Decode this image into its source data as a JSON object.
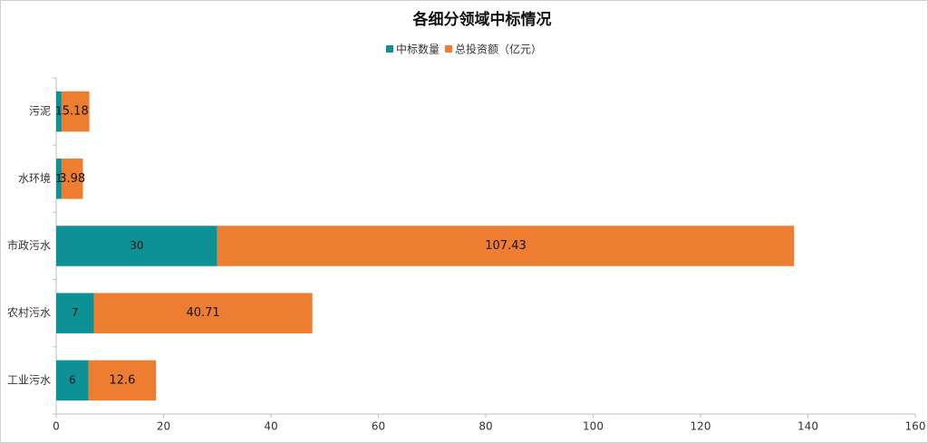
{
  "chart_data": {
    "type": "stacked-hbar",
    "title": "各细分领域中标情况",
    "categories": [
      "污泥",
      "水环境",
      "市政污水",
      "农村污水",
      "工业污水"
    ],
    "series": [
      {
        "name": "中标数量",
        "color": "#0e9196",
        "values": [
          1,
          1,
          30,
          7,
          6
        ]
      },
      {
        "name": "总投资额（亿元）",
        "color": "#ed7d31",
        "values": [
          5.18,
          3.98,
          107.43,
          40.71,
          12.6
        ]
      }
    ],
    "xlim": [
      0,
      160
    ],
    "xticks": [
      0,
      20,
      40,
      60,
      80,
      100,
      120,
      140,
      160
    ]
  }
}
